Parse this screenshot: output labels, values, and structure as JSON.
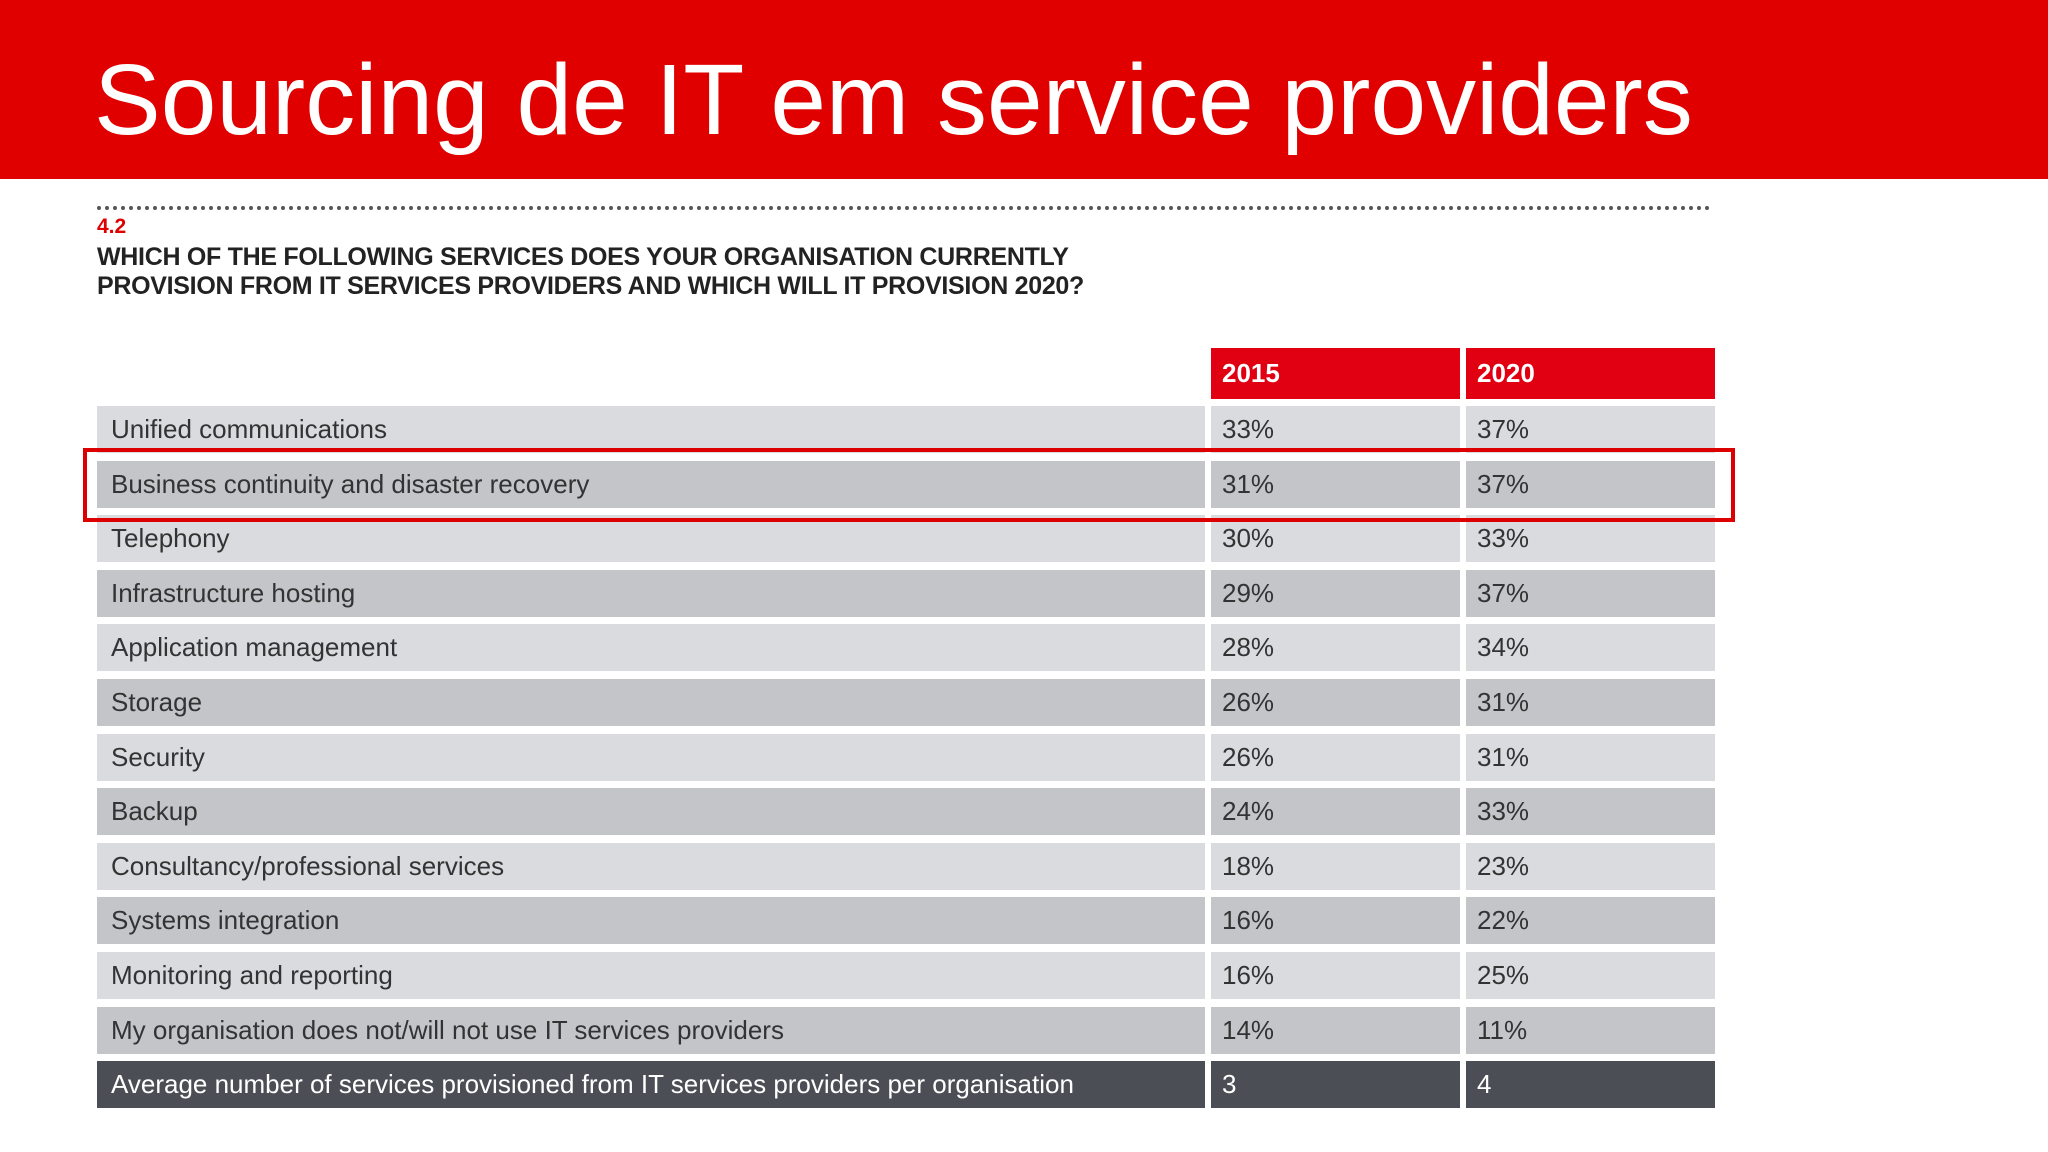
{
  "slide": {
    "title": "Sourcing de IT em service providers"
  },
  "figure": {
    "number": "4.2",
    "question_line1": "WHICH OF THE FOLLOWING SERVICES DOES YOUR ORGANISATION CURRENTLY",
    "question_line2": "PROVISION FROM IT SERVICES PROVIDERS AND WHICH WILL IT PROVISION 2020?"
  },
  "table": {
    "headers": [
      "2015",
      "2020"
    ],
    "rows": [
      {
        "label": "Unified communications",
        "y2015": "33%",
        "y2020": "37%"
      },
      {
        "label": "Business continuity and disaster recovery",
        "y2015": "31%",
        "y2020": "37%"
      },
      {
        "label": "Telephony",
        "y2015": "30%",
        "y2020": "33%"
      },
      {
        "label": "Infrastructure hosting",
        "y2015": "29%",
        "y2020": "37%"
      },
      {
        "label": "Application management",
        "y2015": "28%",
        "y2020": "34%"
      },
      {
        "label": "Storage",
        "y2015": "26%",
        "y2020": "31%"
      },
      {
        "label": "Security",
        "y2015": "26%",
        "y2020": "31%"
      },
      {
        "label": "Backup",
        "y2015": "24%",
        "y2020": "33%"
      },
      {
        "label": "Consultancy/professional services",
        "y2015": "18%",
        "y2020": "23%"
      },
      {
        "label": "Systems integration",
        "y2015": "16%",
        "y2020": "22%"
      },
      {
        "label": "Monitoring and reporting",
        "y2015": "16%",
        "y2020": "25%"
      },
      {
        "label": "My organisation does not/will not use IT services providers",
        "y2015": "14%",
        "y2020": "11%"
      }
    ],
    "total_row": {
      "label": "Average number of services provisioned from IT services providers per organisation",
      "y2015": "3",
      "y2020": "4"
    },
    "highlight_color": "#dd0000"
  },
  "colors": {
    "brand_red": "#e00000",
    "row_light": "#d9dbde",
    "row_dark": "#c3c5c9",
    "row_total": "#4b4f55"
  }
}
